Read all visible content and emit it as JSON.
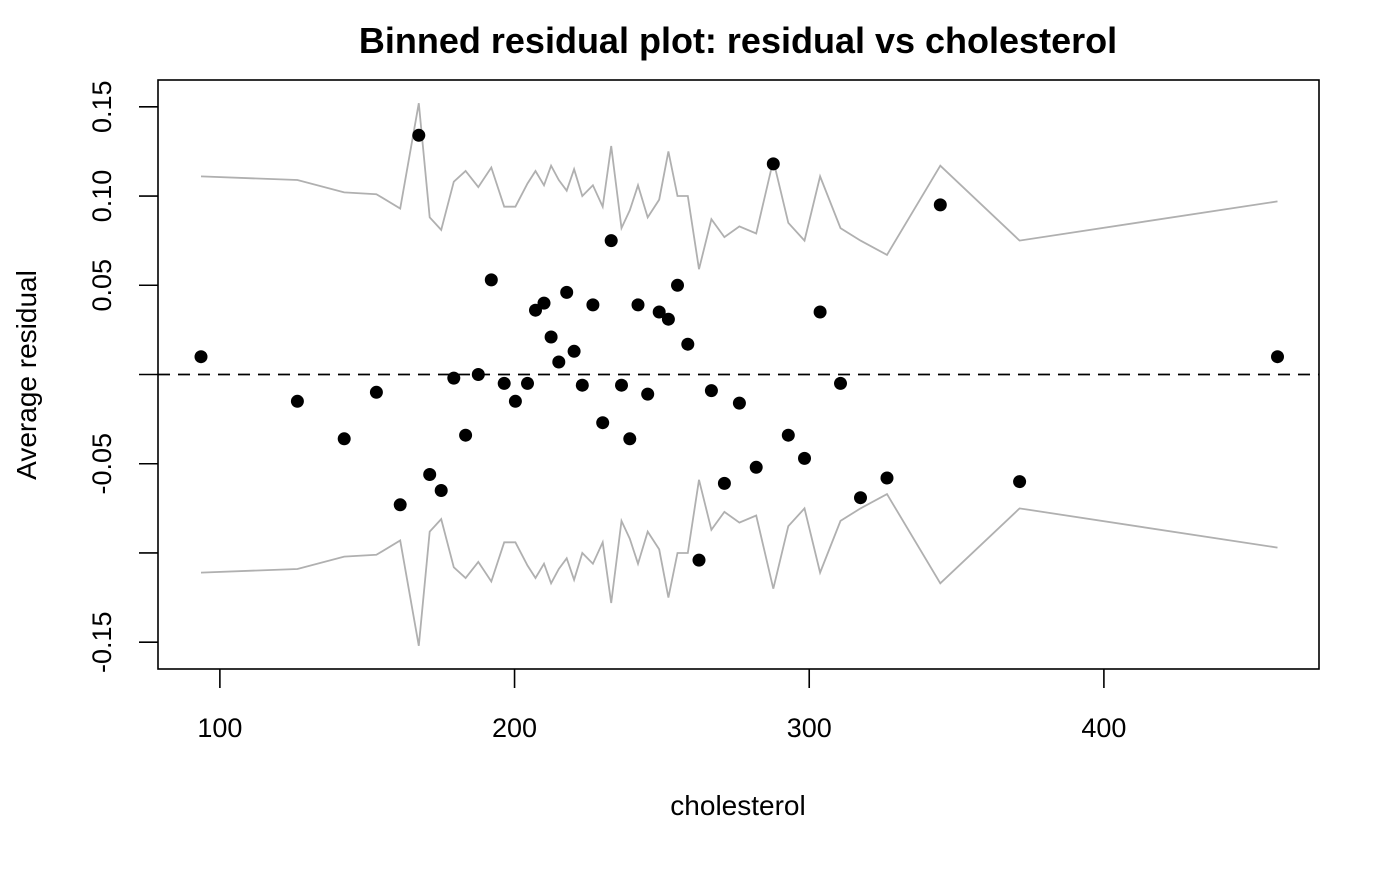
{
  "chart_data": {
    "type": "scatter",
    "title": "Binned residual plot: residual vs cholesterol",
    "xlabel": "cholesterol",
    "ylabel": "Average residual",
    "xlim": [
      79,
      473
    ],
    "ylim": [
      -0.165,
      0.165
    ],
    "x_ticks": [
      100,
      200,
      300,
      400
    ],
    "x_tick_labels": [
      "100",
      "200",
      "300",
      "400"
    ],
    "y_ticks": [
      -0.15,
      -0.1,
      -0.05,
      0.0,
      0.05,
      0.1,
      0.15
    ],
    "y_tick_labels": [
      "-0.15",
      "",
      "-0.05",
      "",
      "0.05",
      "0.10",
      "0.15"
    ],
    "reference_line": {
      "y": 0,
      "style": "dashed"
    },
    "grid": false,
    "legend": "none",
    "colors": {
      "points": "#000000",
      "band": "#b0b0b0",
      "reference": "#000000"
    },
    "series": [
      {
        "type": "scatter",
        "x": [
          93.6,
          126.3,
          142.2,
          153.1,
          161.2,
          167.5,
          171.2,
          175.1,
          179.4,
          183.4,
          187.7,
          192.1,
          196.5,
          200.3,
          204.4,
          207.1,
          210.0,
          212.4,
          215.0,
          217.7,
          220.2,
          223.0,
          226.6,
          229.9,
          232.8,
          236.3,
          239.1,
          241.9,
          245.2,
          249.1,
          252.2,
          255.3,
          258.8,
          262.6,
          266.8,
          271.2,
          276.3,
          282.0,
          287.8,
          292.9,
          298.4,
          303.7,
          310.6,
          317.4,
          326.4,
          344.5,
          371.4,
          458.9
        ],
        "y": [
          0.01,
          -0.015,
          -0.036,
          -0.01,
          -0.073,
          0.134,
          -0.056,
          -0.065,
          -0.002,
          -0.034,
          0.0,
          0.053,
          -0.005,
          -0.015,
          -0.005,
          0.036,
          0.04,
          0.021,
          0.007,
          0.046,
          0.013,
          -0.006,
          0.039,
          -0.027,
          0.075,
          -0.006,
          -0.036,
          0.039,
          -0.011,
          0.035,
          0.031,
          0.05,
          0.017,
          -0.104,
          -0.009,
          -0.061,
          -0.016,
          -0.052,
          0.118,
          -0.034,
          -0.047,
          0.035,
          -0.005,
          -0.069,
          -0.058,
          0.095,
          -0.06,
          0.01
        ]
      },
      {
        "type": "line",
        "x": [
          93.6,
          126.3,
          142.2,
          153.1,
          161.2,
          167.5,
          171.2,
          175.1,
          179.4,
          183.4,
          187.7,
          192.1,
          196.5,
          200.3,
          204.4,
          207.1,
          210.0,
          212.4,
          215.0,
          217.7,
          220.2,
          223.0,
          226.6,
          229.9,
          232.8,
          236.3,
          239.1,
          241.9,
          245.2,
          249.1,
          252.2,
          255.3,
          258.8,
          262.6,
          266.8,
          271.2,
          276.3,
          282.0,
          287.8,
          292.9,
          298.4,
          303.7,
          310.6,
          317.4,
          326.4,
          344.5,
          371.4,
          458.9
        ],
        "y": [
          0.111,
          0.109,
          0.102,
          0.101,
          0.093,
          0.152,
          0.088,
          0.081,
          0.108,
          0.114,
          0.105,
          0.116,
          0.094,
          0.094,
          0.107,
          0.114,
          0.106,
          0.117,
          0.109,
          0.103,
          0.115,
          0.1,
          0.106,
          0.094,
          0.128,
          0.082,
          0.092,
          0.106,
          0.088,
          0.098,
          0.125,
          0.1,
          0.1,
          0.059,
          0.087,
          0.077,
          0.083,
          0.079,
          0.12,
          0.085,
          0.075,
          0.111,
          0.082,
          0.075,
          0.067,
          0.117,
          0.075,
          0.097
        ]
      },
      {
        "type": "line",
        "x": [
          93.6,
          126.3,
          142.2,
          153.1,
          161.2,
          167.5,
          171.2,
          175.1,
          179.4,
          183.4,
          187.7,
          192.1,
          196.5,
          200.3,
          204.4,
          207.1,
          210.0,
          212.4,
          215.0,
          217.7,
          220.2,
          223.0,
          226.6,
          229.9,
          232.8,
          236.3,
          239.1,
          241.9,
          245.2,
          249.1,
          252.2,
          255.3,
          258.8,
          262.6,
          266.8,
          271.2,
          276.3,
          282.0,
          287.8,
          292.9,
          298.4,
          303.7,
          310.6,
          317.4,
          326.4,
          344.5,
          371.4,
          458.9
        ],
        "y": [
          -0.111,
          -0.109,
          -0.102,
          -0.101,
          -0.093,
          -0.152,
          -0.088,
          -0.081,
          -0.108,
          -0.114,
          -0.105,
          -0.116,
          -0.094,
          -0.094,
          -0.107,
          -0.114,
          -0.106,
          -0.117,
          -0.109,
          -0.103,
          -0.115,
          -0.1,
          -0.106,
          -0.094,
          -0.128,
          -0.082,
          -0.092,
          -0.106,
          -0.088,
          -0.098,
          -0.125,
          -0.1,
          -0.1,
          -0.059,
          -0.087,
          -0.077,
          -0.083,
          -0.079,
          -0.12,
          -0.085,
          -0.075,
          -0.111,
          -0.082,
          -0.075,
          -0.067,
          -0.117,
          -0.075,
          -0.097
        ]
      }
    ]
  }
}
